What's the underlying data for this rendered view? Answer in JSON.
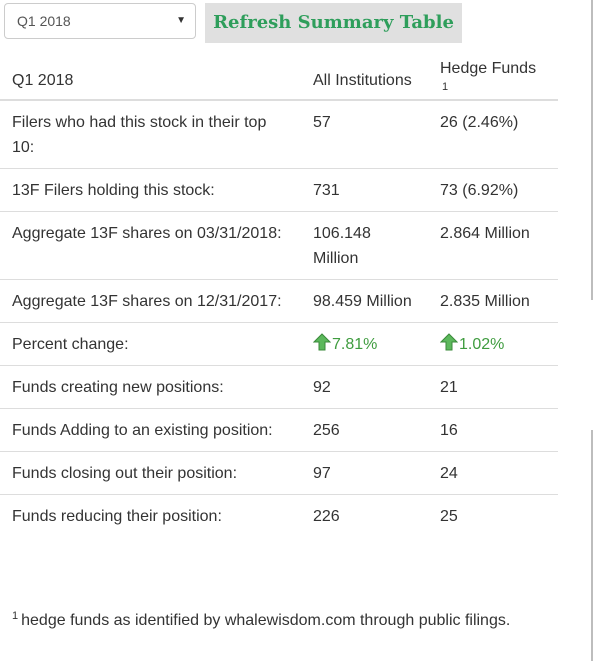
{
  "toolbar": {
    "quarter_select": {
      "value": "Q1 2018"
    },
    "refresh_label": "Refresh Summary Table"
  },
  "table": {
    "headers": {
      "period": "Q1 2018",
      "all_institutions": "All Institutions",
      "hedge_funds": "Hedge Funds",
      "hedge_funds_footnote_ref": "1"
    },
    "rows": [
      {
        "label": "Filers who had this stock in their top 10:",
        "all": "57",
        "hedge": "26 (2.46%)"
      },
      {
        "label": "13F Filers holding this stock:",
        "all": "731",
        "hedge": "73 (6.92%)"
      },
      {
        "label": "Aggregate 13F shares on 03/31/2018:",
        "all": "106.148 Million",
        "hedge": "2.864 Million"
      },
      {
        "label": "Aggregate 13F shares on 12/31/2017:",
        "all": "98.459 Million",
        "hedge": "2.835 Million"
      },
      {
        "label": "Percent change:",
        "all": "7.81%",
        "hedge": "1.02%",
        "trend": "up",
        "trend_color": "#3f9c3f",
        "icon": "arrow-up-icon"
      },
      {
        "label": "Funds creating new positions:",
        "all": "92",
        "hedge": "21"
      },
      {
        "label": "Funds Adding to an existing position:",
        "all": "256",
        "hedge": "16"
      },
      {
        "label": "Funds closing out their position:",
        "all": "97",
        "hedge": "24"
      },
      {
        "label": "Funds reducing their position:",
        "all": "226",
        "hedge": "25"
      }
    ]
  },
  "footnote": {
    "ref": "1",
    "text": "hedge funds as identified by whalewisdom.com through public filings."
  },
  "colors": {
    "accent_green": "#2e9e5b",
    "button_bg": "#e0e0e0",
    "up_green": "#3f9c3f",
    "border": "#dddddd"
  }
}
